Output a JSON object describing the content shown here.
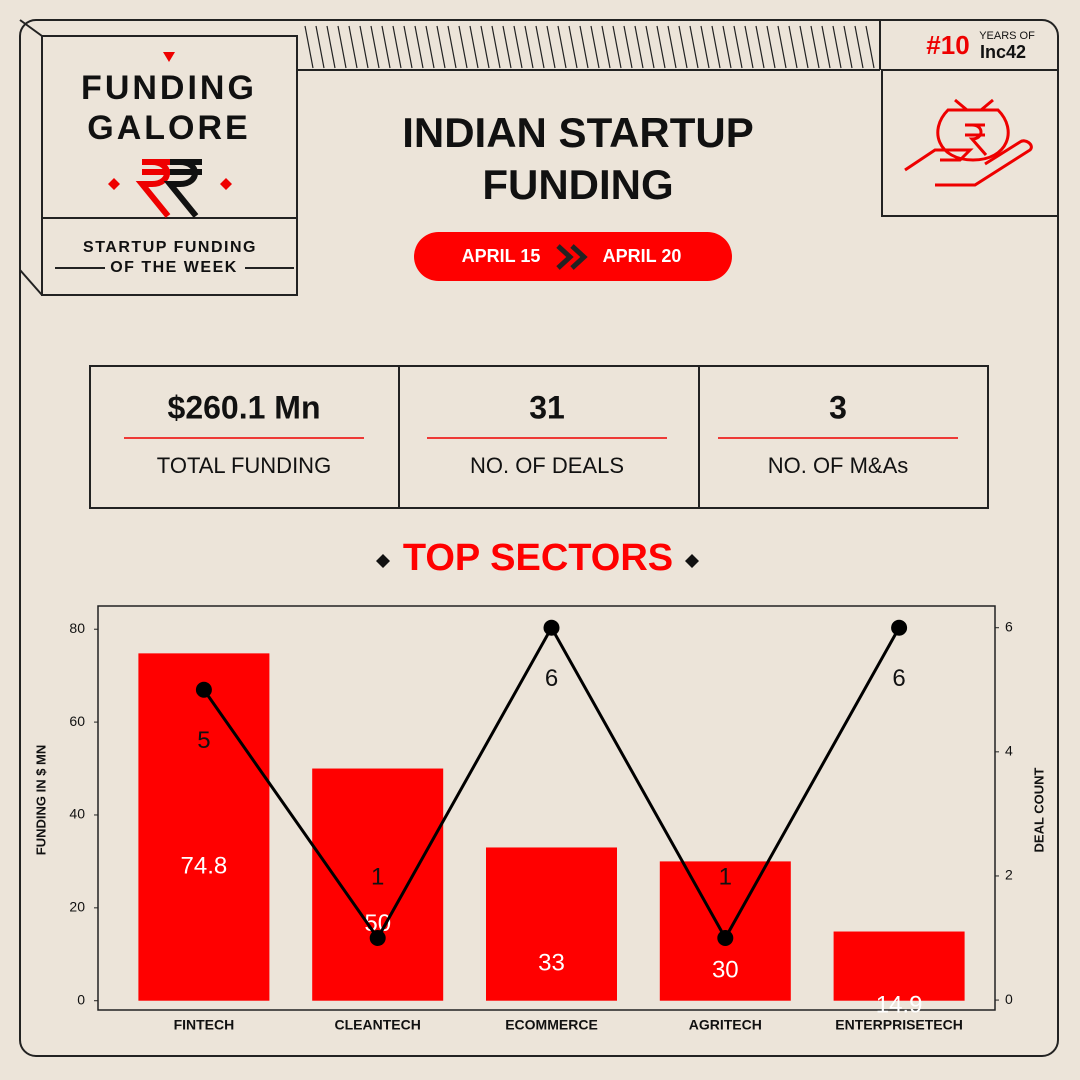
{
  "header": {
    "title_line1": "FUNDING",
    "title_line2": "GALORE",
    "subtitle_line1": "STARTUP FUNDING",
    "subtitle_line2": "OF THE WEEK",
    "main_title_line1": "INDIAN STARTUP",
    "main_title_line2": "FUNDING",
    "date_from": "APRIL 15",
    "date_to": "APRIL 20",
    "logo_number": "#10",
    "logo_years": "YEARS OF",
    "logo_brand": "Inc42"
  },
  "stats": [
    {
      "value": "$260.1 Mn",
      "label": "TOTAL FUNDING"
    },
    {
      "value": "31",
      "label": "NO. OF DEALS"
    },
    {
      "value": "3",
      "label": "NO. OF M&As"
    }
  ],
  "chart_data": {
    "type": "bar",
    "title": "TOP SECTORS",
    "y_label": "FUNDING IN $ MN",
    "y2_label": "DEAL COUNT",
    "categories": [
      "FINTECH",
      "CLEANTECH",
      "ECOMMERCE",
      "AGRITECH",
      "ENTERPRISETECH"
    ],
    "series": [
      {
        "type": "bar",
        "color": "#ff0000",
        "values": [
          74.8,
          50,
          33,
          30,
          14.9
        ],
        "value_labels": [
          "74.8",
          "50",
          "33",
          "30",
          "14.9"
        ]
      },
      {
        "type": "line",
        "axis": "y2",
        "color": "#000000",
        "values": [
          5,
          1,
          6,
          1,
          6
        ]
      }
    ],
    "ylim": [
      -2,
      85
    ],
    "yticks": [
      0,
      20,
      40,
      60,
      80
    ],
    "y2lim": [
      -0.16,
      6.35
    ],
    "y2ticks": [
      0,
      2,
      4,
      6
    ],
    "grid": false
  }
}
